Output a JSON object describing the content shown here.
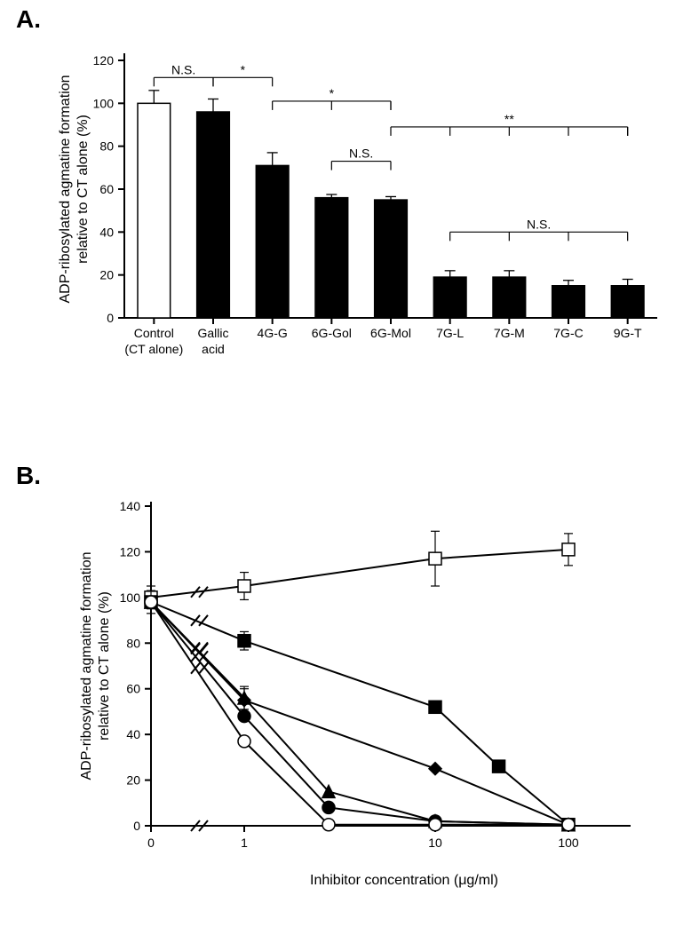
{
  "panelA": {
    "letter": "A.",
    "type": "bar",
    "ylabel": "ADP-ribosylated agmatine formation\nrelative to CT alone (%)",
    "ylabel_fontsize": 16,
    "ylim": [
      0,
      120
    ],
    "ytick_step": 20,
    "background_color": "#ffffff",
    "axis_color": "#000000",
    "axis_width": 2,
    "bar_border_color": "#000000",
    "bar_border_width": 1.5,
    "bar_width": 0.55,
    "categories": [
      {
        "label": "Control",
        "sublabel": "(CT alone)",
        "value": 100,
        "err": 6,
        "fill": "#ffffff"
      },
      {
        "label": "Gallic",
        "sublabel": "acid",
        "value": 96,
        "err": 6,
        "fill": "#000000"
      },
      {
        "label": "4G-G",
        "value": 71,
        "err": 6,
        "fill": "#000000"
      },
      {
        "label": "6G-Gol",
        "value": 56,
        "err": 1.5,
        "fill": "#000000"
      },
      {
        "label": "6G-Mol",
        "value": 55,
        "err": 1.5,
        "fill": "#000000"
      },
      {
        "label": "7G-L",
        "value": 19,
        "err": 3,
        "fill": "#000000"
      },
      {
        "label": "7G-M",
        "value": 19,
        "err": 3,
        "fill": "#000000"
      },
      {
        "label": "7G-C",
        "value": 15,
        "err": 2.5,
        "fill": "#000000"
      },
      {
        "label": "9G-T",
        "value": 15,
        "err": 3,
        "fill": "#000000"
      }
    ],
    "annotations": [
      {
        "text": "N.S.",
        "from": 0,
        "to": 1,
        "y": 112
      },
      {
        "text": "*",
        "from": 1,
        "to": 2,
        "y": 112
      },
      {
        "text": "*",
        "from": 2,
        "to": 4,
        "y": 101,
        "drop_to": [
          3,
          4
        ]
      },
      {
        "text": "N.S.",
        "from": 3,
        "to": 4,
        "y": 73
      },
      {
        "text": "**",
        "from": 4,
        "to": 8,
        "y": 89,
        "drop_to": [
          5,
          6,
          7,
          8
        ]
      },
      {
        "text": "N.S.",
        "from": 5,
        "to": 8,
        "y": 40,
        "drop_to": [
          6,
          7
        ]
      }
    ],
    "annotation_fontsize": 14,
    "annotation_line_width": 1.2
  },
  "panelB": {
    "letter": "B.",
    "type": "line",
    "ylabel": "ADP-ribosylated agmatine formation\nrelative to CT alone (%)",
    "xlabel": "Inhibitor concentration  (μg/ml)",
    "ylabel_fontsize": 16,
    "xlabel_fontsize": 16,
    "ylim": [
      0,
      140
    ],
    "ytick_step": 20,
    "x_break_after_index": 0,
    "x_log_ticks": [
      0,
      1,
      3,
      10,
      100
    ],
    "x_positions": [
      0,
      105,
      200,
      320,
      470
    ],
    "background_color": "#ffffff",
    "axis_color": "#000000",
    "axis_width": 2,
    "line_width": 2,
    "marker_size": 7,
    "series": [
      {
        "name": "open-square",
        "marker": "square",
        "fill": "#ffffff",
        "stroke": "#000000",
        "points": [
          {
            "x": 0,
            "y": 100,
            "err": 5
          },
          {
            "x": 1,
            "y": 105,
            "err": 6
          },
          {
            "x": 10,
            "y": 117,
            "err": 12
          },
          {
            "x": 100,
            "y": 121,
            "err": 7
          }
        ]
      },
      {
        "name": "filled-square",
        "marker": "square",
        "fill": "#000000",
        "stroke": "#000000",
        "points": [
          {
            "x": 0,
            "y": 98,
            "err": 5
          },
          {
            "x": 1,
            "y": 81,
            "err": 4
          },
          {
            "x": 10,
            "y": 52
          },
          {
            "x": 30,
            "y": 26
          },
          {
            "x": 100,
            "y": 0.5
          }
        ]
      },
      {
        "name": "filled-diamond",
        "marker": "diamond",
        "fill": "#000000",
        "stroke": "#000000",
        "points": [
          {
            "x": 0,
            "y": 98
          },
          {
            "x": 1,
            "y": 55,
            "err": 5
          },
          {
            "x": 10,
            "y": 25
          },
          {
            "x": 100,
            "y": 0.5
          }
        ]
      },
      {
        "name": "filled-triangle",
        "marker": "triangle",
        "fill": "#000000",
        "stroke": "#000000",
        "points": [
          {
            "x": 0,
            "y": 98
          },
          {
            "x": 1,
            "y": 56,
            "err": 5
          },
          {
            "x": 3,
            "y": 15
          },
          {
            "x": 10,
            "y": 2
          },
          {
            "x": 100,
            "y": 0.5
          }
        ]
      },
      {
        "name": "filled-circle",
        "marker": "circle",
        "fill": "#000000",
        "stroke": "#000000",
        "points": [
          {
            "x": 0,
            "y": 98
          },
          {
            "x": 1,
            "y": 48
          },
          {
            "x": 3,
            "y": 8
          },
          {
            "x": 10,
            "y": 2
          },
          {
            "x": 100,
            "y": 0.5
          }
        ]
      },
      {
        "name": "open-circle",
        "marker": "circle",
        "fill": "#ffffff",
        "stroke": "#000000",
        "points": [
          {
            "x": 0,
            "y": 98
          },
          {
            "x": 1,
            "y": 37
          },
          {
            "x": 3,
            "y": 0.5
          },
          {
            "x": 10,
            "y": 0.5
          },
          {
            "x": 100,
            "y": 0.5
          }
        ]
      }
    ]
  }
}
